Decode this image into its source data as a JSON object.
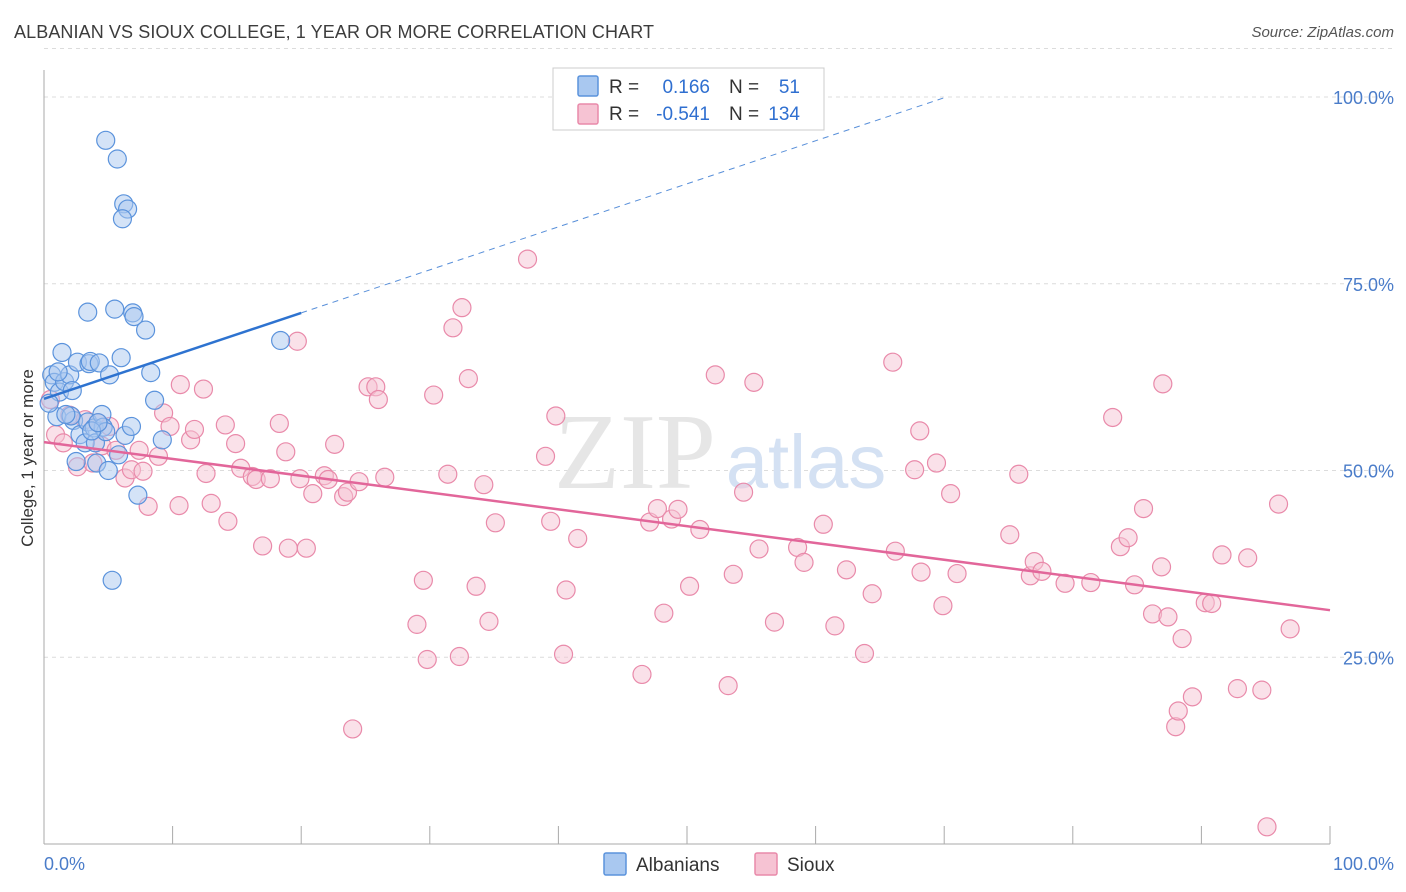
{
  "title": "ALBANIAN VS SIOUX COLLEGE, 1 YEAR OR MORE CORRELATION CHART",
  "source": "Source: ZipAtlas.com",
  "watermark": {
    "zip": "ZIP",
    "atlas": "atlas"
  },
  "colors": {
    "albanians_fill": "#a9c8f0",
    "albanians_stroke": "#5b93dc",
    "albanians_line": "#2e73d0",
    "sioux_fill": "#f6c3d3",
    "sioux_stroke": "#e98aaa",
    "sioux_line": "#e2669a",
    "tick_text": "#4a7cc9",
    "grid": "#dcdcdc"
  },
  "legend": {
    "rows": [
      {
        "r_label": "R =",
        "r_value": "0.166",
        "n_label": "N =",
        "n_value": "51"
      },
      {
        "r_label": "R =",
        "r_value": "-0.541",
        "n_label": "N =",
        "n_value": "134"
      }
    ]
  },
  "chart_data": {
    "type": "scatter",
    "title": "ALBANIAN VS SIOUX COLLEGE, 1 YEAR OR MORE CORRELATION CHART",
    "xlabel": "",
    "ylabel": "College, 1 year or more",
    "xlim": [
      0,
      100
    ],
    "ylim": [
      0,
      106
    ],
    "x_tick_labels": {
      "left": "0.0%",
      "right": "100.0%"
    },
    "y_ticks": [
      {
        "value": 100,
        "label": "100.0%"
      },
      {
        "value": 75,
        "label": "75.0%"
      },
      {
        "value": 50,
        "label": "50.0%"
      },
      {
        "value": 25,
        "label": "25.0%"
      }
    ],
    "series": [
      {
        "name": "Albanians",
        "R": 0.166,
        "N": 51,
        "trend": {
          "x0": 0,
          "y0": 59.6,
          "x1": 20,
          "y1": 71.1,
          "dash_to_x": 70,
          "dash_to_y": 99.9
        },
        "points": [
          [
            0.6,
            62.8
          ],
          [
            0.8,
            61.8
          ],
          [
            1.2,
            60.5
          ],
          [
            1.0,
            57.2
          ],
          [
            1.4,
            65.8
          ],
          [
            1.6,
            61.9
          ],
          [
            2.0,
            62.8
          ],
          [
            2.2,
            60.7
          ],
          [
            2.3,
            56.7
          ],
          [
            2.6,
            64.5
          ],
          [
            2.5,
            51.2
          ],
          [
            2.8,
            54.8
          ],
          [
            3.2,
            53.7
          ],
          [
            3.4,
            56.5
          ],
          [
            3.5,
            64.3
          ],
          [
            3.6,
            64.6
          ],
          [
            3.9,
            55.7
          ],
          [
            4.0,
            53.7
          ],
          [
            4.1,
            51.0
          ],
          [
            4.3,
            64.4
          ],
          [
            4.5,
            57.5
          ],
          [
            4.6,
            55.8
          ],
          [
            4.8,
            55.2
          ],
          [
            5.0,
            50.0
          ],
          [
            5.1,
            62.8
          ],
          [
            3.4,
            71.2
          ],
          [
            5.5,
            71.6
          ],
          [
            5.8,
            52.1
          ],
          [
            6.0,
            65.1
          ],
          [
            6.3,
            54.7
          ],
          [
            6.9,
            71.1
          ],
          [
            7.0,
            70.6
          ],
          [
            7.3,
            46.7
          ],
          [
            7.9,
            68.8
          ],
          [
            8.3,
            63.1
          ],
          [
            8.6,
            59.4
          ],
          [
            9.2,
            54.1
          ],
          [
            4.8,
            94.2
          ],
          [
            5.7,
            91.7
          ],
          [
            6.2,
            85.7
          ],
          [
            6.5,
            85.0
          ],
          [
            6.1,
            83.7
          ],
          [
            5.3,
            35.3
          ],
          [
            18.4,
            67.4
          ],
          [
            0.4,
            59.0
          ],
          [
            2.1,
            57.3
          ],
          [
            1.7,
            57.5
          ],
          [
            3.7,
            55.3
          ],
          [
            4.2,
            56.4
          ],
          [
            6.8,
            55.9
          ],
          [
            1.1,
            63.2
          ]
        ]
      },
      {
        "name": "Sioux",
        "R": -0.541,
        "N": 134,
        "trend": {
          "x0": 0,
          "y0": 53.8,
          "x1": 100,
          "y1": 31.3
        },
        "points": [
          [
            0.5,
            59.5
          ],
          [
            0.9,
            54.8
          ],
          [
            1.5,
            53.7
          ],
          [
            2.0,
            57.4
          ],
          [
            2.6,
            50.5
          ],
          [
            3.2,
            56.8
          ],
          [
            3.8,
            51.0
          ],
          [
            4.2,
            56.4
          ],
          [
            4.5,
            53.3
          ],
          [
            5.1,
            55.9
          ],
          [
            5.6,
            52.7
          ],
          [
            6.3,
            49.0
          ],
          [
            6.8,
            50.1
          ],
          [
            7.4,
            52.7
          ],
          [
            7.7,
            49.9
          ],
          [
            8.1,
            45.2
          ],
          [
            8.9,
            51.9
          ],
          [
            9.3,
            57.7
          ],
          [
            9.8,
            55.9
          ],
          [
            10.5,
            45.3
          ],
          [
            10.6,
            61.5
          ],
          [
            11.4,
            54.1
          ],
          [
            11.7,
            55.5
          ],
          [
            12.4,
            60.9
          ],
          [
            12.6,
            49.6
          ],
          [
            13.0,
            45.6
          ],
          [
            14.1,
            56.1
          ],
          [
            14.3,
            43.2
          ],
          [
            14.9,
            53.6
          ],
          [
            15.3,
            50.3
          ],
          [
            16.2,
            49.2
          ],
          [
            16.5,
            48.8
          ],
          [
            17.0,
            39.9
          ],
          [
            17.6,
            48.9
          ],
          [
            18.3,
            56.3
          ],
          [
            18.8,
            52.5
          ],
          [
            19.0,
            39.6
          ],
          [
            19.7,
            67.3
          ],
          [
            19.9,
            48.9
          ],
          [
            20.4,
            39.6
          ],
          [
            20.9,
            46.9
          ],
          [
            21.8,
            49.3
          ],
          [
            22.1,
            48.8
          ],
          [
            22.6,
            53.5
          ],
          [
            23.3,
            46.5
          ],
          [
            23.6,
            47.1
          ],
          [
            24.5,
            48.5
          ],
          [
            25.2,
            61.2
          ],
          [
            25.8,
            61.2
          ],
          [
            26.0,
            59.5
          ],
          [
            26.5,
            49.1
          ],
          [
            29.0,
            29.4
          ],
          [
            29.5,
            35.3
          ],
          [
            29.8,
            24.7
          ],
          [
            30.3,
            60.1
          ],
          [
            31.4,
            49.5
          ],
          [
            31.8,
            69.1
          ],
          [
            32.3,
            25.1
          ],
          [
            32.5,
            71.8
          ],
          [
            33.0,
            62.3
          ],
          [
            33.6,
            34.5
          ],
          [
            34.2,
            48.1
          ],
          [
            34.6,
            29.8
          ],
          [
            35.1,
            43.0
          ],
          [
            37.6,
            78.3
          ],
          [
            39.0,
            51.9
          ],
          [
            39.4,
            43.2
          ],
          [
            39.8,
            57.3
          ],
          [
            40.4,
            25.4
          ],
          [
            40.6,
            34.0
          ],
          [
            41.5,
            40.9
          ],
          [
            46.5,
            22.7
          ],
          [
            47.1,
            43.1
          ],
          [
            47.7,
            44.9
          ],
          [
            48.2,
            30.9
          ],
          [
            48.8,
            43.5
          ],
          [
            49.3,
            44.8
          ],
          [
            50.2,
            34.5
          ],
          [
            51.0,
            42.1
          ],
          [
            52.2,
            62.8
          ],
          [
            53.2,
            21.2
          ],
          [
            53.6,
            36.1
          ],
          [
            54.4,
            47.1
          ],
          [
            55.2,
            61.8
          ],
          [
            55.6,
            39.5
          ],
          [
            56.8,
            29.7
          ],
          [
            58.6,
            39.7
          ],
          [
            59.1,
            37.7
          ],
          [
            60.6,
            42.8
          ],
          [
            61.5,
            29.2
          ],
          [
            62.4,
            36.7
          ],
          [
            63.8,
            25.5
          ],
          [
            64.4,
            33.5
          ],
          [
            66.0,
            64.5
          ],
          [
            66.2,
            39.2
          ],
          [
            67.7,
            50.1
          ],
          [
            68.1,
            55.3
          ],
          [
            68.2,
            36.4
          ],
          [
            69.4,
            51.0
          ],
          [
            69.9,
            31.9
          ],
          [
            70.5,
            46.9
          ],
          [
            71.0,
            36.2
          ],
          [
            75.1,
            41.4
          ],
          [
            75.8,
            49.5
          ],
          [
            76.7,
            35.9
          ],
          [
            77.0,
            37.8
          ],
          [
            77.6,
            36.5
          ],
          [
            79.4,
            34.9
          ],
          [
            81.4,
            35.0
          ],
          [
            83.1,
            57.1
          ],
          [
            83.7,
            39.8
          ],
          [
            84.3,
            41.0
          ],
          [
            84.8,
            34.7
          ],
          [
            85.5,
            44.9
          ],
          [
            86.2,
            30.8
          ],
          [
            86.9,
            37.1
          ],
          [
            87.0,
            61.6
          ],
          [
            87.4,
            30.4
          ],
          [
            88.0,
            15.7
          ],
          [
            88.2,
            17.8
          ],
          [
            88.5,
            27.5
          ],
          [
            89.3,
            19.7
          ],
          [
            90.3,
            32.3
          ],
          [
            90.8,
            32.2
          ],
          [
            91.6,
            38.7
          ],
          [
            92.8,
            20.8
          ],
          [
            93.6,
            38.3
          ],
          [
            94.7,
            20.6
          ],
          [
            95.1,
            2.3
          ],
          [
            96.0,
            45.5
          ],
          [
            96.9,
            28.8
          ],
          [
            24.0,
            15.4
          ]
        ]
      }
    ]
  },
  "bottom_legend": [
    "Albanians",
    "Sioux"
  ]
}
